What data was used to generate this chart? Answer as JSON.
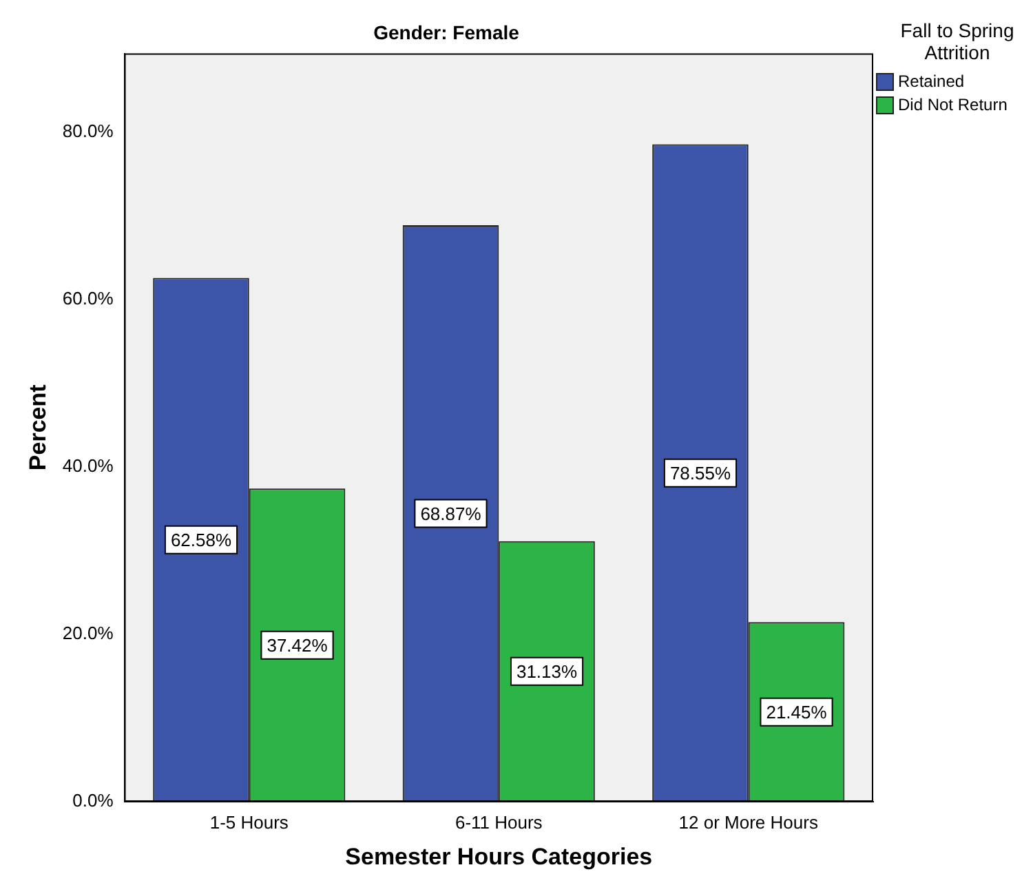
{
  "chart_data": {
    "type": "bar",
    "title": "Gender: Female",
    "xlabel": "Semester Hours Categories",
    "ylabel": "Percent",
    "legend_title": "Fall to Spring Attrition",
    "categories": [
      "1-5 Hours",
      "6-11 Hours",
      "12 or More Hours"
    ],
    "series": [
      {
        "name": "Retained",
        "color": "#3d55a8",
        "values": [
          62.58,
          68.87,
          78.55
        ],
        "value_labels": [
          "62.58%",
          "68.87%",
          "78.55%"
        ]
      },
      {
        "name": "Did Not Return",
        "color": "#2db446",
        "values": [
          37.42,
          31.13,
          21.45
        ],
        "value_labels": [
          "37.42%",
          "31.13%",
          "21.45%"
        ]
      }
    ],
    "ylim": [
      0,
      89.4
    ],
    "yticks": [
      {
        "value": 0,
        "label": "0.0%"
      },
      {
        "value": 20,
        "label": "20.0%"
      },
      {
        "value": 40,
        "label": "40.0%"
      },
      {
        "value": 60,
        "label": "60.0%"
      },
      {
        "value": 80,
        "label": "80.0%"
      }
    ],
    "grid": false,
    "legend": "top right"
  }
}
